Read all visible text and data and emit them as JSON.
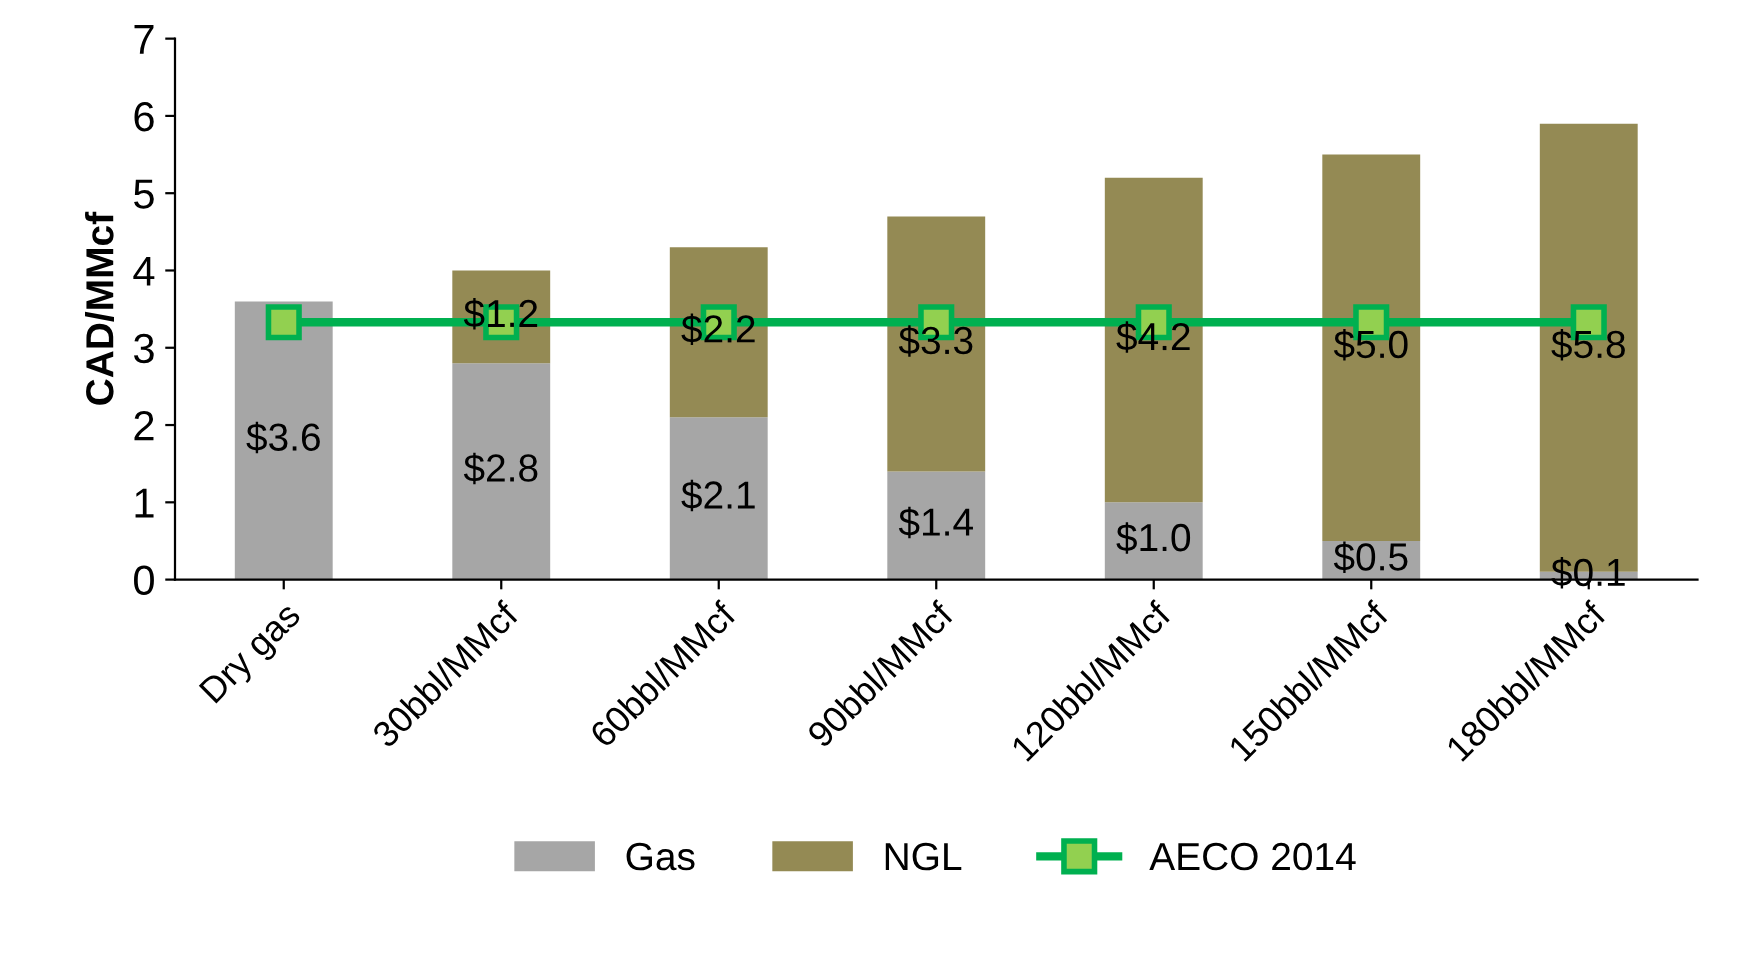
{
  "chart_data": {
    "type": "bar",
    "stacked": true,
    "ylabel": "CAD/MMcf",
    "categories": [
      "Dry gas",
      "30bbl/MMcf",
      "60bbl/MMcf",
      "90bbl/MMcf",
      "120bbl/MMcf",
      "150bbl/MMcf",
      "180bbl/MMcf"
    ],
    "series": [
      {
        "name": "Gas",
        "color": "#a6a6a6",
        "values": [
          3.6,
          2.8,
          2.1,
          1.4,
          1.0,
          0.5,
          0.1
        ],
        "value_labels": [
          "$3.6",
          "$2.8",
          "$2.1",
          "$1.4",
          "$1.0",
          "$0.5",
          "$0.1"
        ]
      },
      {
        "name": "NGL",
        "color": "#948a54",
        "values": [
          0,
          1.2,
          2.2,
          3.3,
          4.2,
          5.0,
          5.8
        ],
        "value_labels": [
          null,
          "$1.2",
          "$2.2",
          "$3.3",
          "$4.2",
          "$5.0",
          "$5.8"
        ]
      },
      {
        "name": "AECO 2014",
        "type": "line",
        "color": "#00b050",
        "marker": "square",
        "values": [
          3.33,
          3.33,
          3.33,
          3.33,
          3.33,
          3.33,
          3.33
        ]
      }
    ],
    "ylim": [
      0,
      7
    ],
    "yticks": [
      0,
      1,
      2,
      3,
      4,
      5,
      6,
      7
    ],
    "grid": false,
    "legend": "bottom"
  }
}
